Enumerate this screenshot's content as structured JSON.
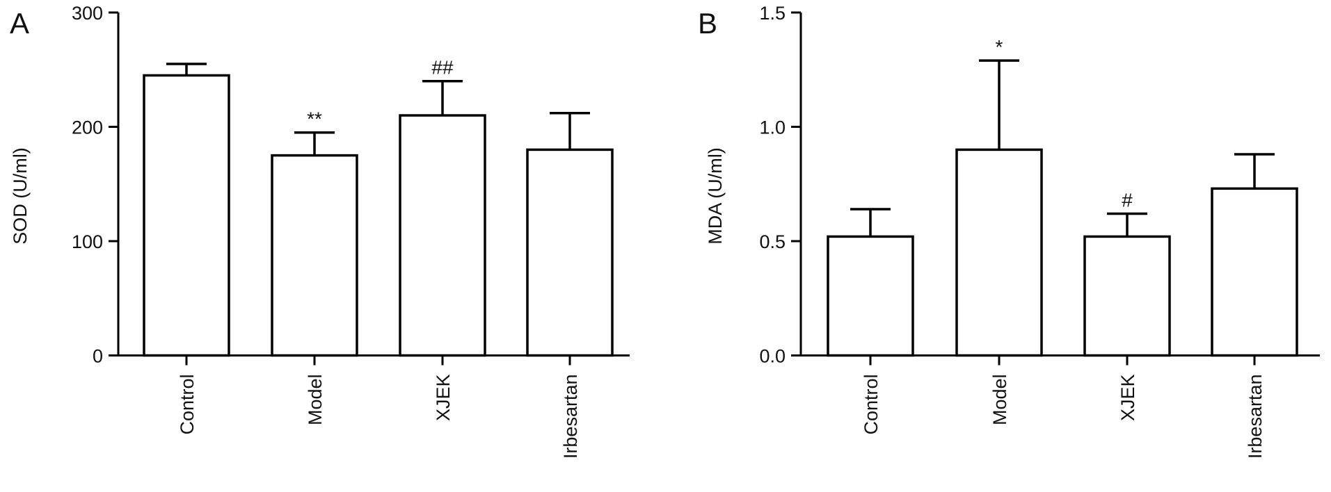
{
  "chart_data": [
    {
      "panel": "A",
      "type": "bar",
      "ylabel": "SOD (U/ml)",
      "xlabel": "",
      "categories": [
        "Control",
        "Model",
        "XJEK",
        "Irbesartan"
      ],
      "values": [
        245,
        175,
        210,
        180
      ],
      "error_upper": [
        255,
        195,
        240,
        212
      ],
      "annotations": [
        "",
        "**",
        "##",
        ""
      ],
      "ylim": [
        0,
        300
      ],
      "yticks": [
        "0",
        "100",
        "200",
        "300"
      ]
    },
    {
      "panel": "B",
      "type": "bar",
      "ylabel": "MDA (U/ml)",
      "xlabel": "",
      "categories": [
        "Control",
        "Model",
        "XJEK",
        "Irbesartan"
      ],
      "values": [
        0.52,
        0.9,
        0.52,
        0.73
      ],
      "error_upper": [
        0.64,
        1.29,
        0.62,
        0.88
      ],
      "annotations": [
        "",
        "*",
        "#",
        ""
      ],
      "ylim": [
        0,
        1.5
      ],
      "yticks": [
        "0.0",
        "0.5",
        "1.0",
        "1.5"
      ]
    }
  ]
}
